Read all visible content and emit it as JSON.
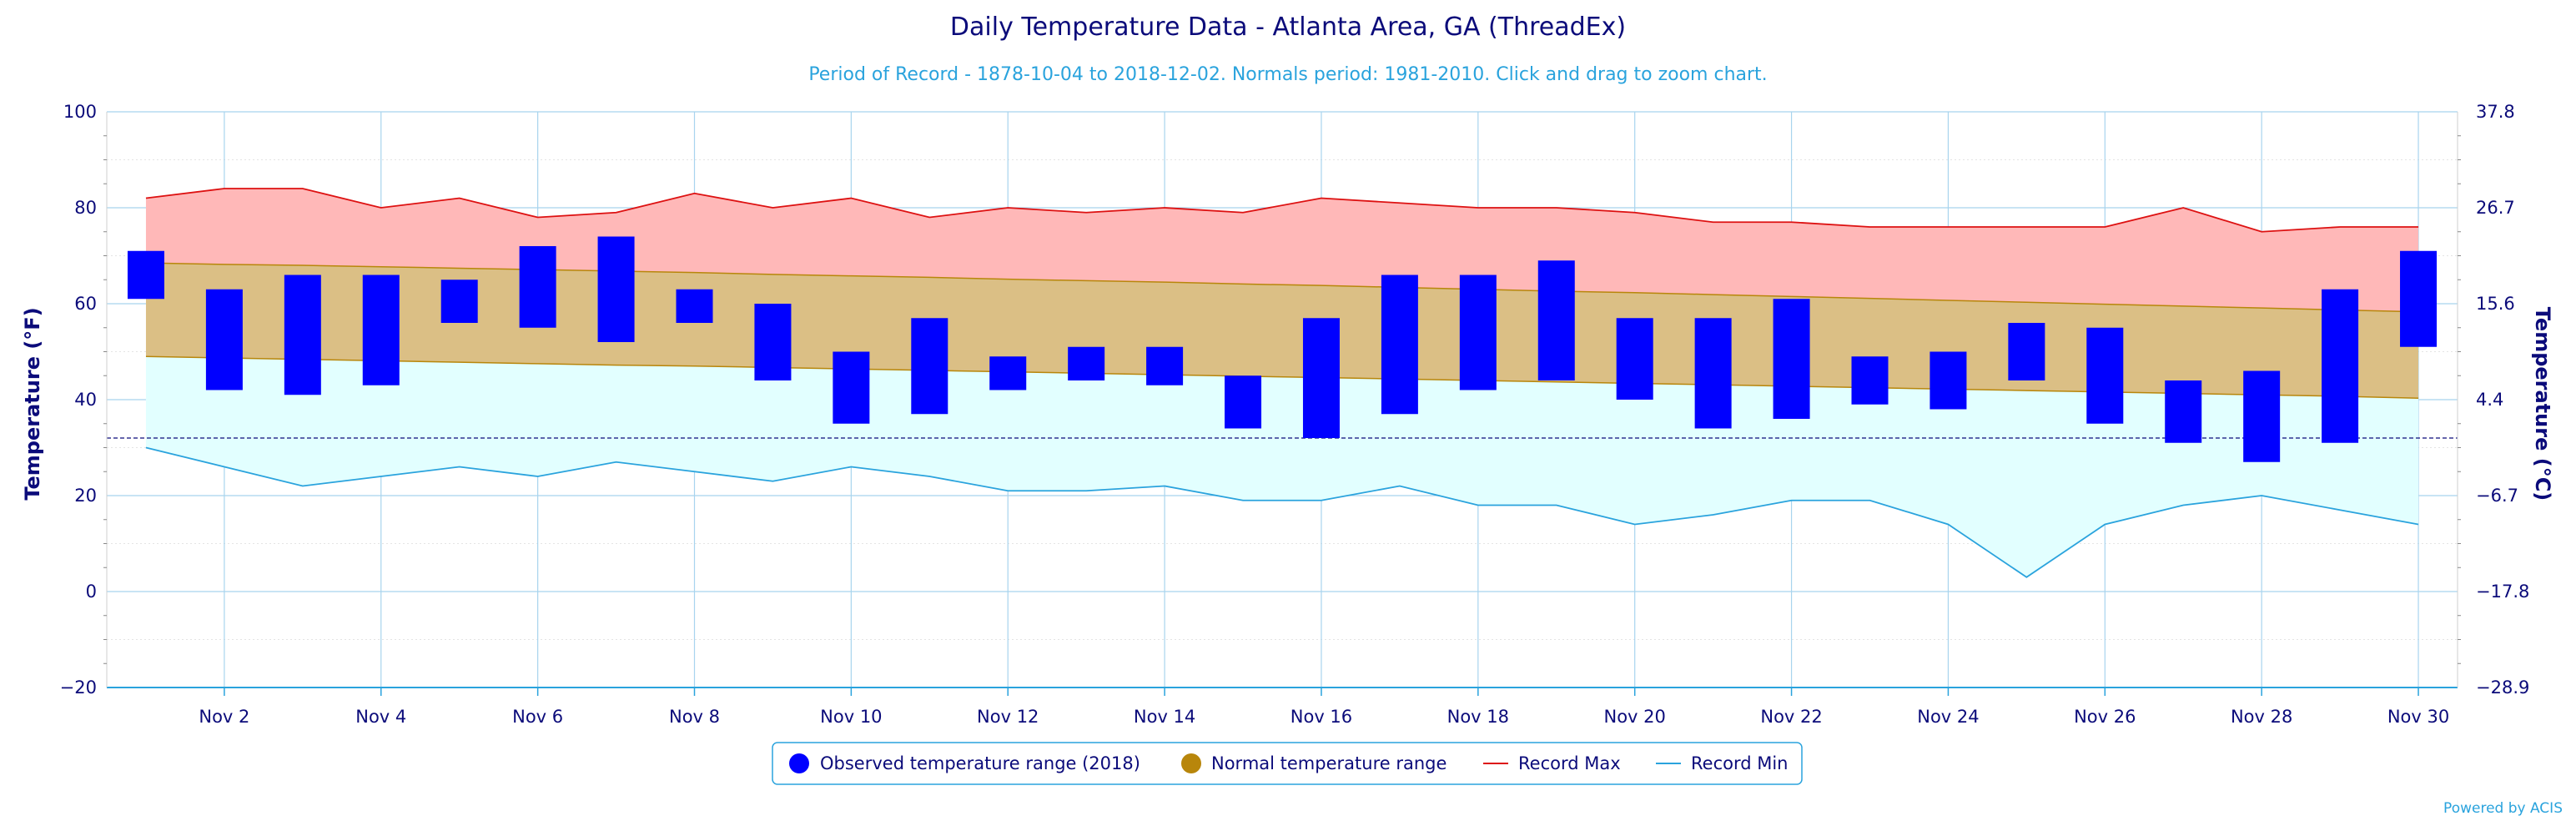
{
  "chart_data": {
    "type": "bar",
    "title": "Daily Temperature Data - Atlanta Area, GA (ThreadEx)",
    "subtitle": "Period of Record - 1878-10-04 to 2018-12-02. Normals period: 1981-2010. Click and drag to zoom chart.",
    "ylabel_left": "Temperature (°F)",
    "ylabel_right": "Temperature (°C)",
    "ylim": [
      -20,
      100
    ],
    "y_ticks_left": [
      "100",
      "80",
      "60",
      "40",
      "20",
      "0",
      "−20"
    ],
    "y_ticks_right": [
      "37.8",
      "26.7",
      "15.6",
      "4.4",
      "−6.7",
      "−17.8",
      "−28.9"
    ],
    "x_tick_labels": [
      "Nov 2",
      "Nov 4",
      "Nov 6",
      "Nov 8",
      "Nov 10",
      "Nov 12",
      "Nov 14",
      "Nov 16",
      "Nov 18",
      "Nov 20",
      "Nov 22",
      "Nov 24",
      "Nov 26",
      "Nov 28",
      "Nov 30"
    ],
    "days": [
      1,
      2,
      3,
      4,
      5,
      6,
      7,
      8,
      9,
      10,
      11,
      12,
      13,
      14,
      15,
      16,
      17,
      18,
      19,
      20,
      21,
      22,
      23,
      24,
      25,
      26,
      27,
      28,
      29,
      30
    ],
    "freezing_line_f": 32,
    "series": [
      {
        "name": "Observed temperature range (2018)",
        "type": "columnrange",
        "color": "#0000ff",
        "low": [
          61,
          42,
          41,
          43,
          56,
          55,
          52,
          56,
          44,
          35,
          37,
          42,
          44,
          43,
          34,
          32,
          37,
          42,
          44,
          40,
          34,
          36,
          39,
          38,
          44,
          35,
          31,
          27,
          31,
          51
        ],
        "high": [
          71,
          63,
          66,
          66,
          65,
          72,
          74,
          63,
          60,
          50,
          57,
          49,
          51,
          51,
          45,
          57,
          66,
          66,
          69,
          57,
          57,
          61,
          49,
          50,
          56,
          55,
          44,
          46,
          63,
          71
        ]
      },
      {
        "name": "Normal temperature range",
        "type": "arearange",
        "color": "#b8860b",
        "low": [
          49,
          48.7,
          48.4,
          48.1,
          47.8,
          47.5,
          47.2,
          47,
          46.7,
          46.4,
          46.1,
          45.8,
          45.5,
          45.2,
          44.9,
          44.6,
          44.3,
          44,
          43.7,
          43.4,
          43.1,
          42.8,
          42.5,
          42.2,
          41.9,
          41.6,
          41.3,
          41,
          40.7,
          40.3
        ],
        "high": [
          68.5,
          68.2,
          68,
          67.7,
          67.4,
          67.1,
          66.8,
          66.5,
          66.1,
          65.8,
          65.5,
          65.1,
          64.8,
          64.5,
          64.1,
          63.8,
          63.4,
          63,
          62.6,
          62.3,
          61.9,
          61.5,
          61.1,
          60.7,
          60.3,
          59.9,
          59.5,
          59.1,
          58.7,
          58.3
        ]
      },
      {
        "name": "Record Max",
        "type": "line",
        "color": "#dd1111",
        "values": [
          82,
          84,
          84,
          80,
          82,
          78,
          79,
          83,
          80,
          82,
          78,
          80,
          79,
          80,
          79,
          82,
          81,
          80,
          80,
          79,
          77,
          77,
          76,
          76,
          76,
          76,
          80,
          75,
          76,
          76
        ]
      },
      {
        "name": "Record Min",
        "type": "line",
        "color": "#2aa3dd",
        "values": [
          30,
          26,
          22,
          24,
          26,
          24,
          27,
          25,
          23,
          26,
          24,
          21,
          21,
          22,
          19,
          19,
          22,
          18,
          18,
          14,
          16,
          19,
          19,
          14,
          3,
          14,
          18,
          20,
          17,
          14
        ]
      }
    ],
    "legend_position": "bottom-center",
    "grid": true
  },
  "credits": "Powered by ACIS"
}
